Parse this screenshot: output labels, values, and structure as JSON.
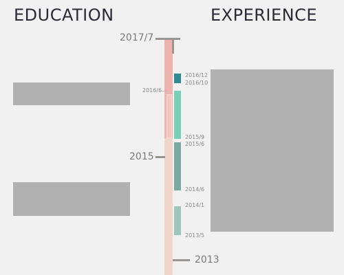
{
  "headings": {
    "education": "EDUCATION",
    "experience": "EXPERIENCE"
  },
  "axis": {
    "top_year": "2017/7",
    "mid_year": "2015",
    "bottom_year": "2013"
  },
  "education_dates": {
    "start": "2016/6"
  },
  "experience_dates": [
    {
      "label": "2016/12"
    },
    {
      "label": "2016/10"
    },
    {
      "label": "2015/9"
    },
    {
      "label": "2015/6"
    },
    {
      "label": "2014/6"
    },
    {
      "label": "2014/1"
    },
    {
      "label": "2013/5"
    }
  ],
  "colors": {
    "background": "#f1f1f1",
    "axis_top": "#eeb3ad",
    "axis_bottom": "#efd6c9",
    "tick": "#9b9592",
    "exp_1": "#2e8b93",
    "exp_2": "#79cfb8",
    "exp_3": "#7aa9a5",
    "exp_4": "#9ec6bd",
    "redacted": "#b1b1b1"
  }
}
